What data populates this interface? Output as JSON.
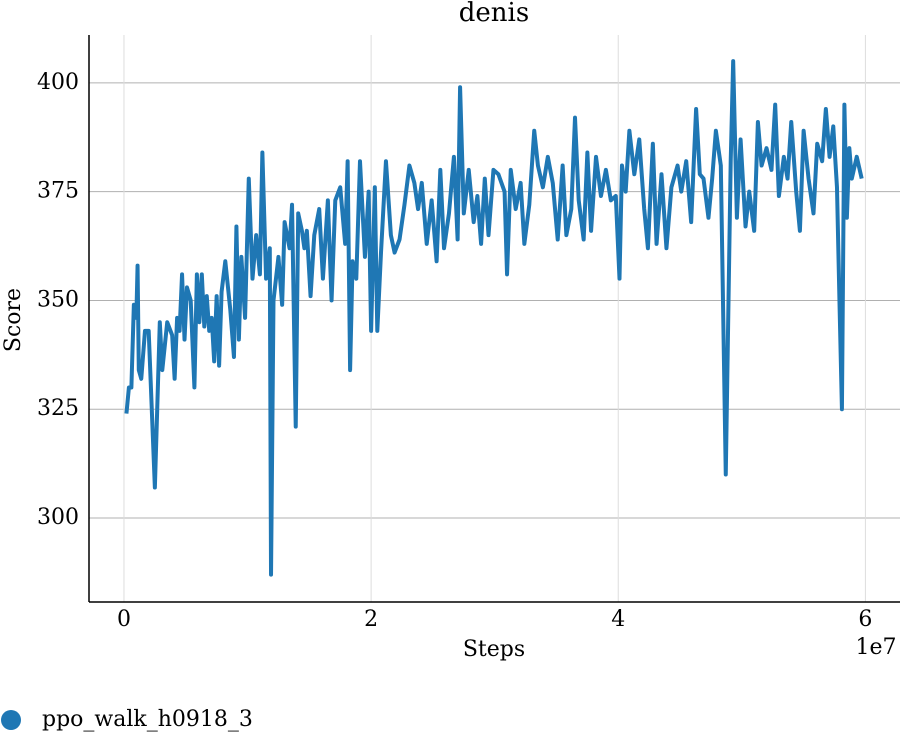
{
  "chart_data": {
    "type": "line",
    "title": "denis",
    "xlabel": "Steps",
    "ylabel": "Score",
    "x_offset_text": "1e7",
    "x": [
      200000,
      400000,
      600000,
      800000,
      1000000,
      1100000,
      1200000,
      1400000,
      1700000,
      2000000,
      2500000,
      2900000,
      3100000,
      3500000,
      3900000,
      4100000,
      4300000,
      4500000,
      4700000,
      4900000,
      5100000,
      5400000,
      5700000,
      5900000,
      6100000,
      6300000,
      6500000,
      6700000,
      6900000,
      7100000,
      7300000,
      7500000,
      7700000,
      7900000,
      8200000,
      8600000,
      8900000,
      9100000,
      9300000,
      9500000,
      9800000,
      10100000,
      10400000,
      10700000,
      11000000,
      11200000,
      11500000,
      11800000,
      11900000,
      12100000,
      12500000,
      12800000,
      13000000,
      13400000,
      13600000,
      13900000,
      14100000,
      14400000,
      14600000,
      14800000,
      15100000,
      15400000,
      15800000,
      16100000,
      16500000,
      16800000,
      17100000,
      17500000,
      17900000,
      18100000,
      18300000,
      18500000,
      18800000,
      19100000,
      19500000,
      19800000,
      20000000,
      20300000,
      20500000,
      20800000,
      21200000,
      21600000,
      21900000,
      22300000,
      22700000,
      23100000,
      23500000,
      23800000,
      24100000,
      24500000,
      24900000,
      25300000,
      25600000,
      25900000,
      26300000,
      26700000,
      27000000,
      27200000,
      27500000,
      27900000,
      28300000,
      28600000,
      28900000,
      29200000,
      29500000,
      29900000,
      30300000,
      30800000,
      31000000,
      31300000,
      31700000,
      32100000,
      32400000,
      32800000,
      33200000,
      33500000,
      33900000,
      34300000,
      34700000,
      35100000,
      35500000,
      35800000,
      36200000,
      36500000,
      36800000,
      37200000,
      37500000,
      37800000,
      38200000,
      38600000,
      39000000,
      39400000,
      39800000,
      40100000,
      40300000,
      40600000,
      40900000,
      41300000,
      41700000,
      42100000,
      42400000,
      42800000,
      43100000,
      43500000,
      43900000,
      44300000,
      44800000,
      45100000,
      45500000,
      45900000,
      46300000,
      46600000,
      46900000,
      47300000,
      47600000,
      47900000,
      48300000,
      48700000,
      49100000,
      49300000,
      49600000,
      49900000,
      50300000,
      50600000,
      51000000,
      51300000,
      51600000,
      52000000,
      52400000,
      52700000,
      53000000,
      53400000,
      53700000,
      54000000,
      54400000,
      54700000,
      55000000,
      55400000,
      55800000,
      56100000,
      56500000,
      56800000,
      57100000,
      57400000,
      57700000,
      57900000,
      58100000,
      58300000,
      58500000,
      58700000,
      58900000,
      59300000,
      59700000
    ],
    "series": [
      {
        "name": "ppo_walk_h0918_3",
        "color": "#1f77b4",
        "values": [
          324,
          330,
          330,
          349,
          346,
          358,
          334,
          332,
          343,
          343,
          307,
          345,
          334,
          345,
          342,
          332,
          346,
          343,
          356,
          341,
          353,
          350,
          330,
          356,
          345,
          356,
          344,
          351,
          343,
          346,
          336,
          351,
          335,
          352,
          359,
          348,
          337,
          367,
          341,
          360,
          346,
          378,
          355,
          365,
          356,
          384,
          355,
          362,
          287,
          350,
          360,
          349,
          368,
          362,
          372,
          321,
          370,
          366,
          362,
          366,
          351,
          365,
          371,
          355,
          373,
          350,
          373,
          376,
          363,
          382,
          334,
          359,
          355,
          382,
          360,
          375,
          343,
          376,
          343,
          361,
          382,
          365,
          361,
          364,
          372,
          381,
          377,
          371,
          377,
          363,
          373,
          359,
          380,
          362,
          370,
          383,
          364,
          399,
          370,
          380,
          368,
          374,
          363,
          378,
          365,
          380,
          379,
          375,
          356,
          380,
          371,
          377,
          363,
          372,
          389,
          381,
          376,
          383,
          377,
          364,
          381,
          365,
          371,
          392,
          373,
          364,
          384,
          366,
          383,
          374,
          380,
          373,
          374,
          355,
          381,
          375,
          389,
          379,
          387,
          371,
          362,
          386,
          363,
          379,
          362,
          376,
          381,
          375,
          382,
          368,
          394,
          379,
          378,
          369,
          378,
          389,
          381,
          310,
          382,
          405,
          369,
          387,
          367,
          375,
          366,
          391,
          381,
          385,
          380,
          395,
          374,
          383,
          378,
          391,
          375,
          366,
          389,
          378,
          370,
          386,
          382,
          394,
          383,
          390,
          376,
          350,
          325,
          395,
          369,
          385,
          378,
          383,
          378
        ]
      }
    ],
    "xlim": [
      -2830000,
      62800000
    ],
    "ylim": [
      280.7,
      411
    ],
    "xticks": [
      {
        "value": 0,
        "label": "0"
      },
      {
        "value": 20000000,
        "label": "2"
      },
      {
        "value": 40000000,
        "label": "4"
      },
      {
        "value": 60000000,
        "label": "6"
      }
    ],
    "yticks": [
      300,
      325,
      350,
      375,
      400
    ],
    "grid": true
  }
}
